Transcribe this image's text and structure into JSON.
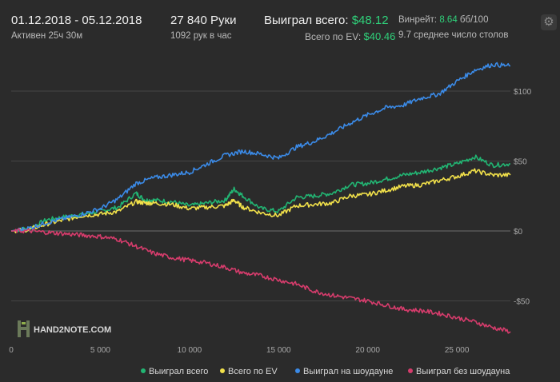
{
  "header": {
    "date_range": "01.12.2018 - 05.12.2018",
    "active": "Активен 25ч 30м",
    "hands": "27 840 Руки",
    "hands_per_hour": "1092 рук в час",
    "won_total_label": "Выиграл всего:",
    "won_total_value": "$48.12",
    "ev_label": "Всего по EV:",
    "ev_value": "$40.46",
    "winrate_label": "Винрейт:",
    "winrate_value": "8.64",
    "winrate_unit": "бб/100",
    "avg_tables": "9.7 среднее число столов",
    "settings_icon": "gear-icon"
  },
  "logo": "HAND2NOTE.COM",
  "chart_data": {
    "type": "line",
    "xlim": [
      0,
      28000
    ],
    "ylim": [
      -75,
      120
    ],
    "x_ticks": [
      0,
      5000,
      10000,
      15000,
      20000,
      25000
    ],
    "x_tick_labels": [
      "0",
      "5 000",
      "10 000",
      "15 000",
      "20 000",
      "25 000"
    ],
    "y_ticks": [
      100,
      50,
      0,
      -50
    ],
    "y_tick_labels": [
      "$100",
      "$50",
      "$0",
      "-$50"
    ],
    "grid": "horizontal",
    "legend_position": "bottom",
    "series": [
      {
        "name": "Выиграл всего",
        "color": "#22b573",
        "x": [
          0,
          1000,
          2000,
          3000,
          4000,
          5000,
          6000,
          7000,
          7500,
          8000,
          9000,
          10000,
          11000,
          12000,
          12500,
          13000,
          14000,
          15000,
          16000,
          17000,
          18000,
          19000,
          20000,
          21000,
          22000,
          23000,
          24000,
          25000,
          26000,
          27000,
          28000
        ],
        "y": [
          0,
          2,
          8,
          10,
          12,
          14,
          17,
          27,
          22,
          22,
          21,
          18,
          20,
          22,
          30,
          25,
          16,
          14,
          24,
          25,
          27,
          33,
          34,
          37,
          40,
          42,
          45,
          48,
          53,
          47,
          48
        ]
      },
      {
        "name": "Всего по EV",
        "color": "#f2e14a",
        "x": [
          0,
          1000,
          2000,
          3000,
          4000,
          5000,
          6000,
          7000,
          7500,
          8000,
          9000,
          10000,
          11000,
          12000,
          12500,
          13000,
          14000,
          15000,
          16000,
          17000,
          18000,
          19000,
          20000,
          21000,
          22000,
          23000,
          24000,
          25000,
          26000,
          27000,
          28000
        ],
        "y": [
          0,
          1,
          5,
          8,
          11,
          12,
          14,
          21,
          20,
          20,
          19,
          16,
          17,
          18,
          22,
          17,
          13,
          11,
          18,
          19,
          20,
          25,
          26,
          29,
          32,
          33,
          36,
          39,
          43,
          40,
          40
        ]
      },
      {
        "name": "Выиграл на шоудауне",
        "color": "#3b8be8",
        "x": [
          0,
          1000,
          2000,
          3000,
          4000,
          5000,
          6000,
          7000,
          8000,
          9000,
          10000,
          11000,
          12000,
          13000,
          14000,
          15000,
          16000,
          17000,
          18000,
          19000,
          20000,
          21000,
          22000,
          23000,
          24000,
          25000,
          26000,
          27000,
          28000
        ],
        "y": [
          0,
          2,
          6,
          9,
          12,
          16,
          23,
          34,
          38,
          40,
          42,
          48,
          54,
          57,
          55,
          52,
          60,
          64,
          70,
          77,
          83,
          88,
          90,
          95,
          98,
          107,
          115,
          119,
          118
        ]
      },
      {
        "name": "Выиграл без шоудауна",
        "color": "#d63c6c",
        "x": [
          0,
          1000,
          2000,
          3000,
          4000,
          5000,
          6000,
          7000,
          8000,
          9000,
          10000,
          11000,
          12000,
          13000,
          14000,
          15000,
          16000,
          17000,
          18000,
          19000,
          20000,
          21000,
          22000,
          23000,
          24000,
          25000,
          26000,
          27000,
          28000
        ],
        "y": [
          0,
          0,
          -1,
          -2,
          -3,
          -4,
          -6,
          -11,
          -16,
          -19,
          -21,
          -23,
          -26,
          -30,
          -32,
          -35,
          -38,
          -43,
          -46,
          -48,
          -50,
          -53,
          -56,
          -57,
          -59,
          -62,
          -65,
          -69,
          -72
        ]
      }
    ]
  }
}
